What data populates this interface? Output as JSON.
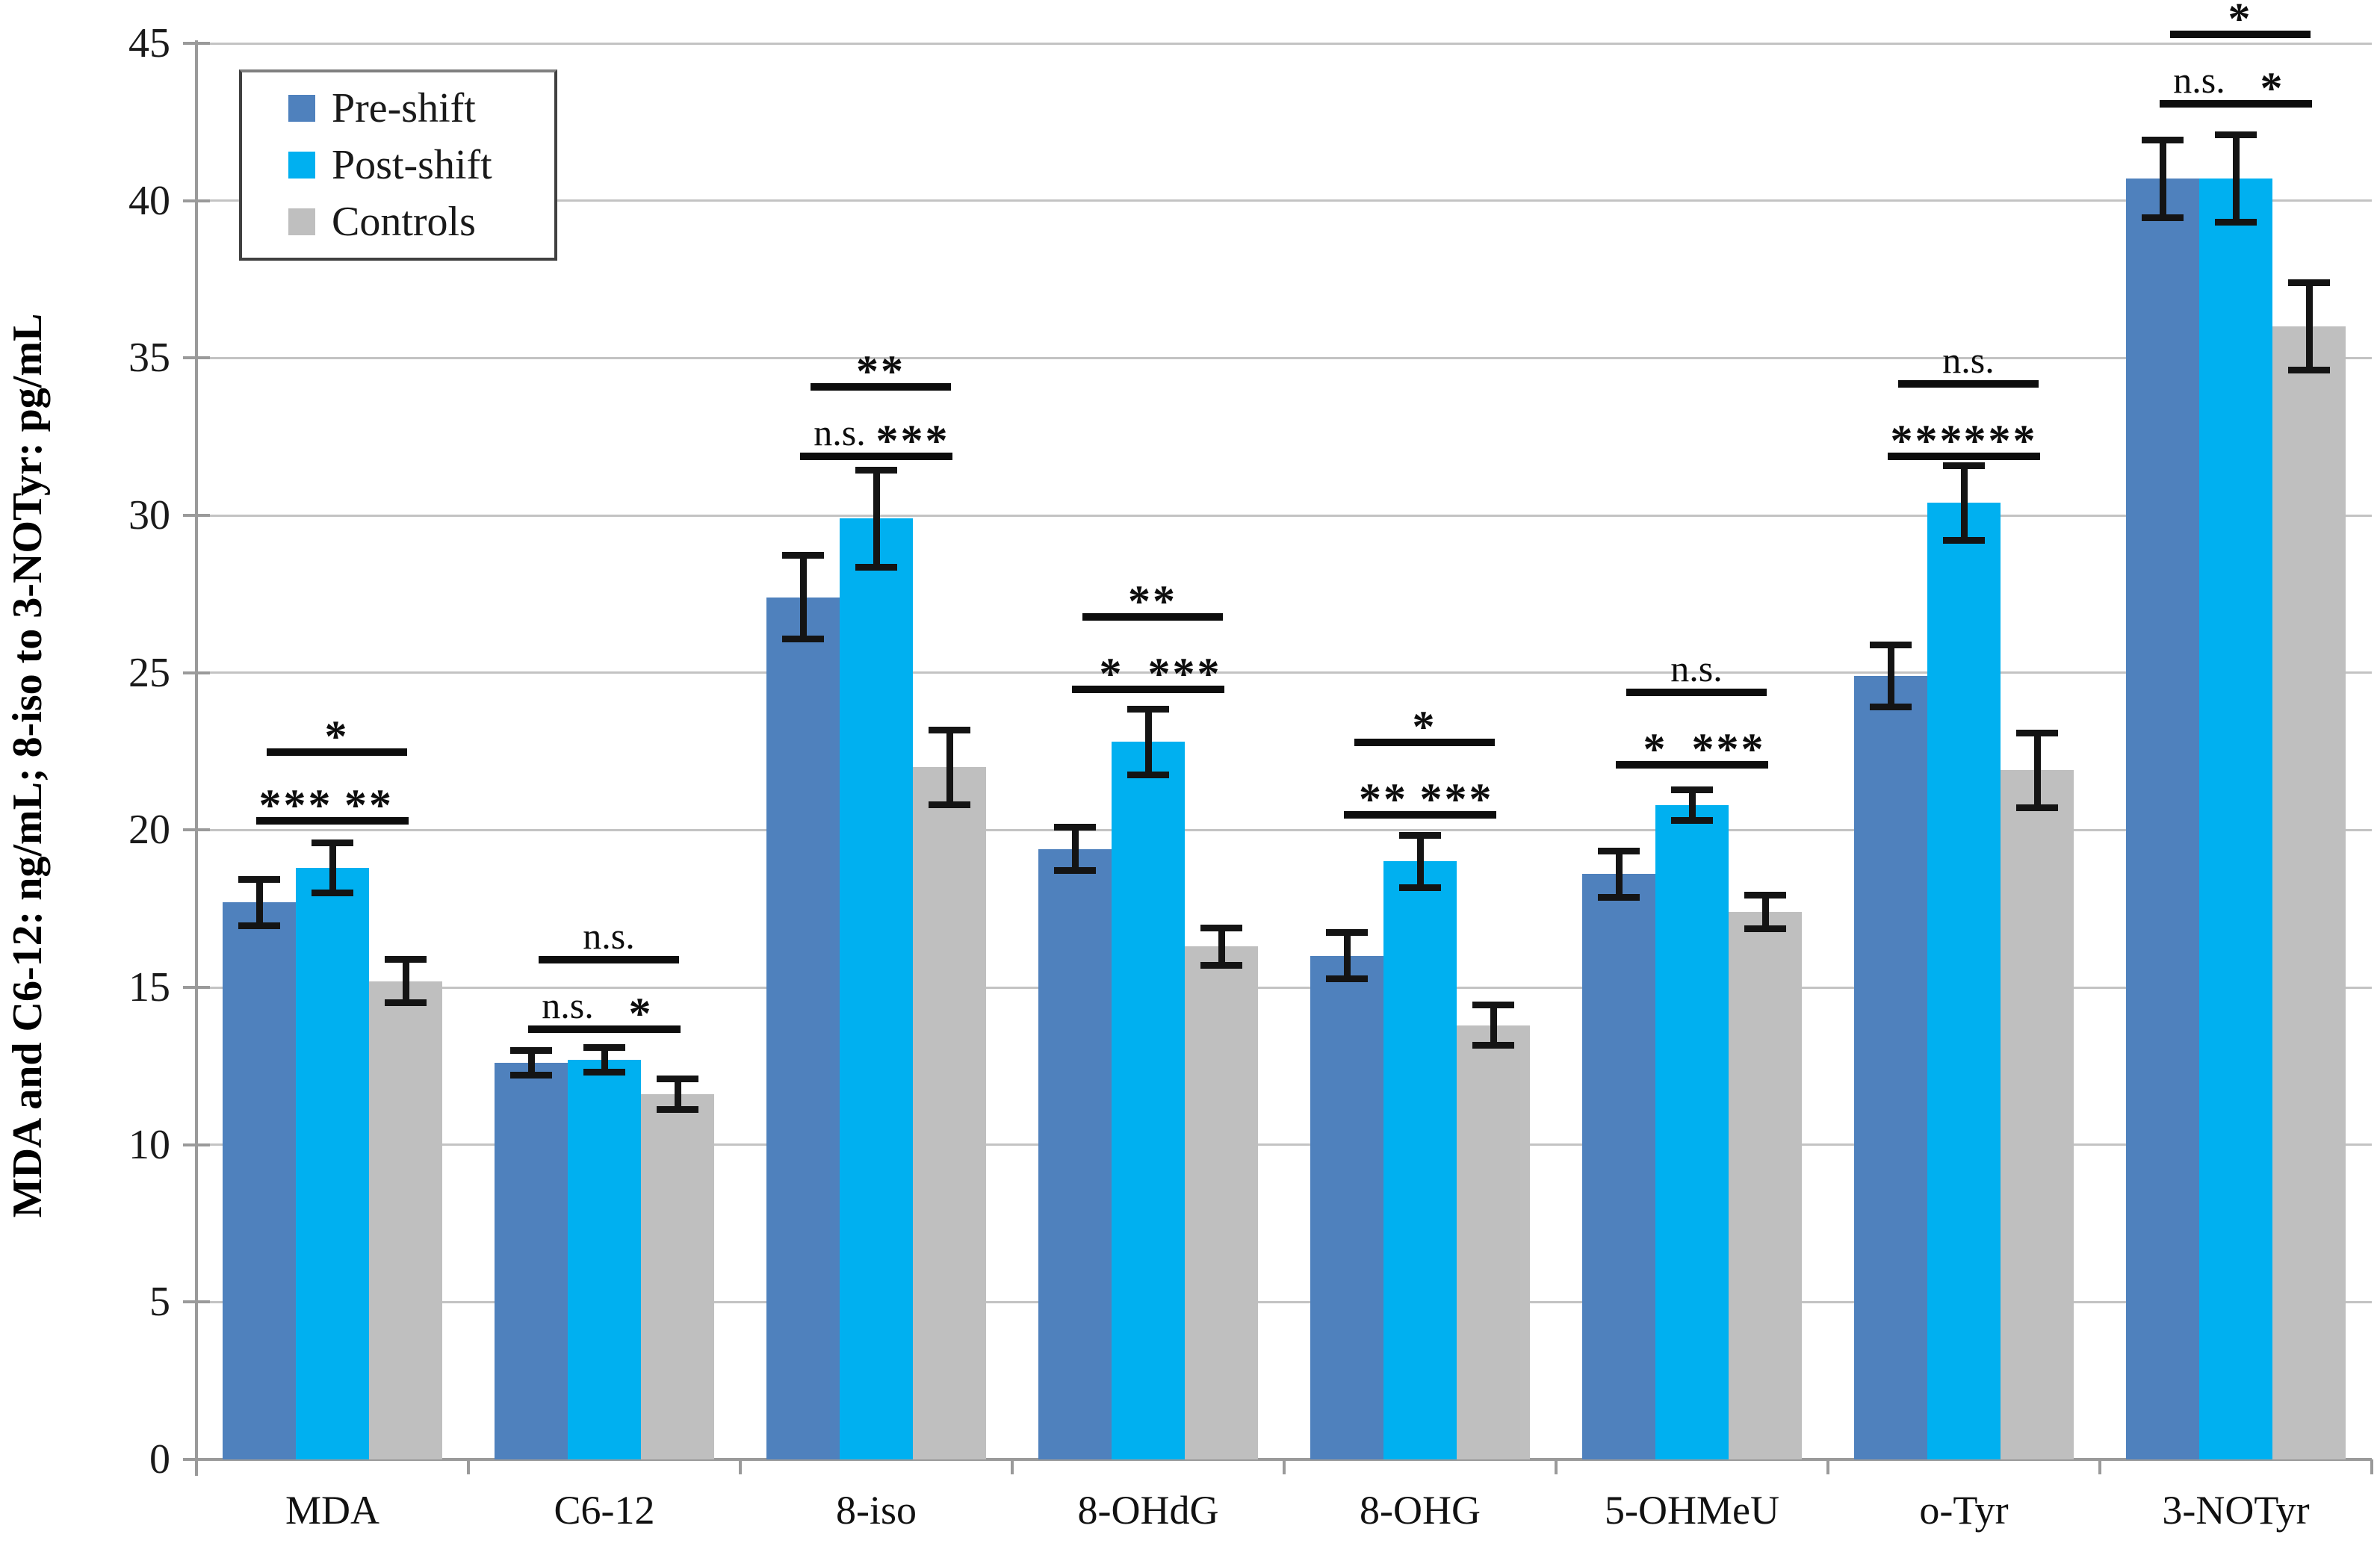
{
  "chart_data": {
    "type": "bar",
    "title": "",
    "xlabel": "",
    "ylabel": "MDA and C6-12: ng/mL; 8-iso to 3-NOTyr: pg/mL",
    "ylim": [
      0,
      45
    ],
    "yticks": [
      0,
      5,
      10,
      15,
      20,
      25,
      30,
      35,
      40,
      45
    ],
    "grid": "horizontal",
    "legend_position": "top-left-inside",
    "categories": [
      "MDA",
      "C6-12",
      "8-iso",
      "8-OHdG",
      "8-OHG",
      "5-OHMeU",
      "o-Tyr",
      "3-NOTyr"
    ],
    "series": [
      {
        "name": "Pre-shift",
        "color": "#4F81BD",
        "values": [
          17.7,
          12.6,
          27.4,
          19.4,
          16.0,
          18.6,
          24.9,
          40.7
        ],
        "errors": [
          0.75,
          0.4,
          1.35,
          0.7,
          0.75,
          0.75,
          1.0,
          1.25
        ]
      },
      {
        "name": "Post-shift",
        "color": "#00B0F0",
        "values": [
          18.8,
          12.7,
          29.9,
          22.8,
          19.0,
          20.8,
          30.4,
          40.7
        ],
        "errors": [
          0.8,
          0.4,
          1.55,
          1.05,
          0.85,
          0.5,
          1.2,
          1.4
        ]
      },
      {
        "name": "Controls",
        "color": "#BFBFBF",
        "values": [
          15.2,
          11.6,
          22.0,
          16.3,
          13.8,
          17.4,
          21.9,
          36.0
        ],
        "errors": [
          0.7,
          0.5,
          1.2,
          0.6,
          0.65,
          0.55,
          1.2,
          1.4
        ]
      }
    ],
    "significance": [
      {
        "category": "MDA",
        "pre_vs_post": "***",
        "post_vs_controls": "**",
        "pre_vs_controls": "*",
        "pair_line_value": 20.4,
        "span_line_value": 22.6
      },
      {
        "category": "C6-12",
        "pre_vs_post": "n.s.",
        "post_vs_controls": "*",
        "pre_vs_controls": "n.s.",
        "pair_line_value": 13.8,
        "span_line_value": 16.0
      },
      {
        "category": "8-iso",
        "pre_vs_post": "n.s.",
        "post_vs_controls": "***",
        "pre_vs_controls": "**",
        "pair_line_value": 32.0,
        "span_line_value": 34.2
      },
      {
        "category": "8-OHdG",
        "pre_vs_post": "*",
        "post_vs_controls": "***",
        "pre_vs_controls": "**",
        "pair_line_value": 24.6,
        "span_line_value": 26.9
      },
      {
        "category": "8-OHG",
        "pre_vs_post": "**",
        "post_vs_controls": "***",
        "pre_vs_controls": "*",
        "pair_line_value": 20.6,
        "span_line_value": 22.9
      },
      {
        "category": "5-OHMeU",
        "pre_vs_post": "*",
        "post_vs_controls": "***",
        "pre_vs_controls": "n.s.",
        "pair_line_value": 22.2,
        "span_line_value": 24.5
      },
      {
        "category": "o-Tyr",
        "pre_vs_post": "***",
        "post_vs_controls": "***",
        "pre_vs_controls": "n.s.",
        "pair_line_value": 32.0,
        "span_line_value": 34.3
      },
      {
        "category": "3-NOTyr",
        "pre_vs_post": "n.s.",
        "post_vs_controls": "*",
        "pre_vs_controls": "*",
        "pair_line_value": 43.2,
        "span_line_value": 45.4
      }
    ],
    "colors": {
      "grid": "#C3C3C3",
      "axis": "#9A9A9A",
      "annotation": "#0D0D0D"
    }
  }
}
